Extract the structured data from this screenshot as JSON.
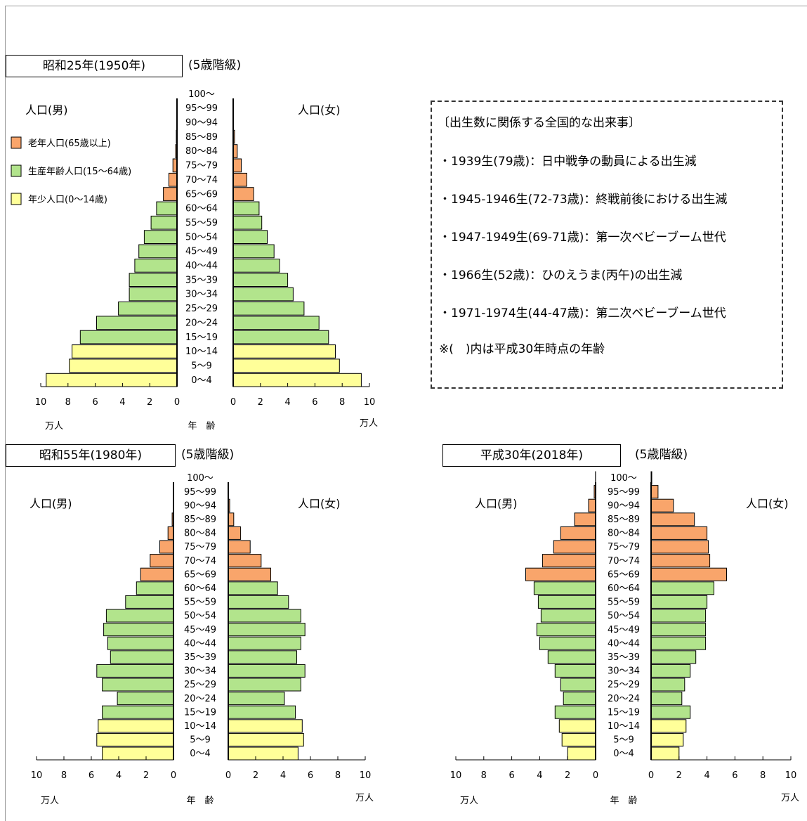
{
  "age_groups": [
    "0～4",
    "5～9",
    "10～14",
    "15～19",
    "20～24",
    "25～29",
    "30～34",
    "35～39",
    "40～44",
    "45～49",
    "50～54",
    "55～59",
    "60～64",
    "65～69",
    "70～74",
    "75～79",
    "80～84",
    "85～89",
    "90～94",
    "95～99",
    "100～"
  ],
  "labels": {
    "male": "人口(男)",
    "female": "人口(女)",
    "age": "年　齢",
    "unit": "万人",
    "kaikyu": "(5歳階級)"
  },
  "legend": [
    {
      "key": "old",
      "label": "老年人口(65歳以上)",
      "color": "#F9A56B"
    },
    {
      "key": "work",
      "label": "生産年齢人口(15～64歳)",
      "color": "#B2E48C"
    },
    {
      "key": "young",
      "label": "年少人口(0～14歳)",
      "color": "#FFFF99"
    }
  ],
  "notes": {
    "heading": "〔出生数に関係する全国的な出来事〕",
    "items": [
      "・1939生(79歳)：日中戦争の動員による出生減",
      "・1945-1946生(72-73歳)：終戦前後における出生減",
      "・1947-1949生(69-71歳)：第一次ベビーブーム世代",
      "・1966生(52歳)：ひのえうま(丙午)の出生減",
      "・1971-1974生(44-47歳)：第二次ベビーブーム世代"
    ],
    "footer": "※(　)内は平成30年時点の年齢"
  },
  "chart_data": [
    {
      "type": "bar",
      "title": "昭和25年(1950年)",
      "categories": [
        "0～4",
        "5～9",
        "10～14",
        "15～19",
        "20～24",
        "25～29",
        "30～34",
        "35～39",
        "40～44",
        "45～49",
        "50～54",
        "55～59",
        "60～64",
        "65～69",
        "70～74",
        "75～79",
        "80～84",
        "85～89",
        "90～94",
        "95～99",
        "100～"
      ],
      "series": [
        {
          "name": "人口(男)",
          "values": [
            9.6,
            7.9,
            7.7,
            7.1,
            5.9,
            4.3,
            3.5,
            3.5,
            3.1,
            2.8,
            2.4,
            1.9,
            1.5,
            1.0,
            0.6,
            0.3,
            0.1,
            0.05,
            0.02,
            0.01,
            0.0
          ]
        },
        {
          "name": "人口(女)",
          "values": [
            9.4,
            7.8,
            7.5,
            7.0,
            6.3,
            5.2,
            4.4,
            4.0,
            3.4,
            3.0,
            2.5,
            2.1,
            1.9,
            1.5,
            1.0,
            0.6,
            0.3,
            0.1,
            0.03,
            0.01,
            0.0
          ]
        }
      ],
      "xlim": [
        0,
        10
      ],
      "xticks": [
        "10",
        "8",
        "6",
        "4",
        "2",
        "0",
        "0",
        "2",
        "4",
        "6",
        "8",
        "10"
      ]
    },
    {
      "type": "bar",
      "title": "昭和55年(1980年)",
      "categories": [
        "0～4",
        "5～9",
        "10～14",
        "15～19",
        "20～24",
        "25～29",
        "30～34",
        "35～39",
        "40～44",
        "45～49",
        "50～54",
        "55～59",
        "60～64",
        "65～69",
        "70～74",
        "75～79",
        "80～84",
        "85～89",
        "90～94",
        "95～99",
        "100～"
      ],
      "series": [
        {
          "name": "人口(男)",
          "values": [
            5.2,
            5.6,
            5.5,
            5.2,
            4.1,
            5.2,
            5.6,
            4.6,
            4.8,
            5.1,
            4.9,
            3.5,
            2.7,
            2.4,
            1.7,
            1.0,
            0.4,
            0.1,
            0.02,
            0.01,
            0.0
          ]
        },
        {
          "name": "人口(女)",
          "values": [
            5.1,
            5.5,
            5.4,
            4.9,
            4.1,
            5.3,
            5.6,
            5.0,
            5.3,
            5.6,
            5.3,
            4.4,
            3.6,
            3.1,
            2.4,
            1.6,
            0.9,
            0.4,
            0.1,
            0.02,
            0.0
          ]
        }
      ],
      "xlim": [
        0,
        10
      ],
      "xticks": [
        "10",
        "8",
        "6",
        "4",
        "2",
        "0",
        "0",
        "2",
        "4",
        "6",
        "8",
        "10"
      ]
    },
    {
      "type": "bar",
      "title": "平成30年(2018年)",
      "categories": [
        "0～4",
        "5～9",
        "10～14",
        "15～19",
        "20～24",
        "25～29",
        "30～34",
        "35～39",
        "40～44",
        "45～49",
        "50～54",
        "55～59",
        "60～64",
        "65～69",
        "70～74",
        "75～79",
        "80～84",
        "85～89",
        "90～94",
        "95～99",
        "100～"
      ],
      "series": [
        {
          "name": "人口(男)",
          "values": [
            2.0,
            2.4,
            2.6,
            2.9,
            2.3,
            2.5,
            2.9,
            3.4,
            4.0,
            4.2,
            3.9,
            4.1,
            4.4,
            5.0,
            3.8,
            3.0,
            2.5,
            1.5,
            0.5,
            0.1,
            0.01
          ]
        },
        {
          "name": "人口(女)",
          "values": [
            2.0,
            2.3,
            2.5,
            2.8,
            2.2,
            2.4,
            2.8,
            3.2,
            3.9,
            3.9,
            3.9,
            4.0,
            4.5,
            5.4,
            4.2,
            4.1,
            4.0,
            3.1,
            1.6,
            0.5,
            0.05
          ]
        }
      ],
      "xlim": [
        0,
        10
      ],
      "xticks": [
        "10",
        "8",
        "6",
        "4",
        "2",
        "0",
        "0",
        "2",
        "4",
        "6",
        "8",
        "10"
      ]
    }
  ]
}
